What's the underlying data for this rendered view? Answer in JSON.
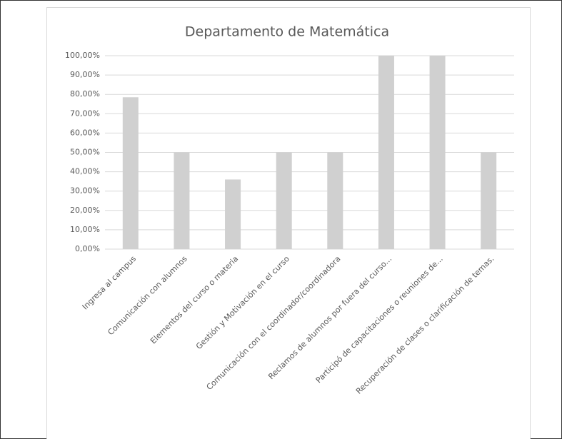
{
  "chart_data": {
    "type": "bar",
    "title": "Departamento de Matemática",
    "categories": [
      "Ingresa al campus",
      "Comunicación con alumnos",
      "Elementos del curso o materia",
      "Gestión y Motivación en el curso",
      "Comunicación con el coordinador/coordinadora",
      "Reclamos de alumnos por fuera del curso...",
      "Participó de capacitaciones o reuniones de...",
      "Recuperación de clases o clarificación de temas."
    ],
    "values": [
      78.5,
      50,
      36,
      50,
      50,
      100,
      100,
      50
    ],
    "color": "#d0d0d0",
    "ylim": [
      0,
      100
    ],
    "yticks": [
      {
        "value": 0,
        "label": "0,00%"
      },
      {
        "value": 10,
        "label": "10,00%"
      },
      {
        "value": 20,
        "label": "20,00%"
      },
      {
        "value": 30,
        "label": "30,00%"
      },
      {
        "value": 40,
        "label": "40,00%"
      },
      {
        "value": 50,
        "label": "50,00%"
      },
      {
        "value": 60,
        "label": "60,00%"
      },
      {
        "value": 70,
        "label": "70,00%"
      },
      {
        "value": 80,
        "label": "80,00%"
      },
      {
        "value": 90,
        "label": "90,00%"
      },
      {
        "value": 100,
        "label": "100,00%"
      }
    ],
    "grid": true
  }
}
